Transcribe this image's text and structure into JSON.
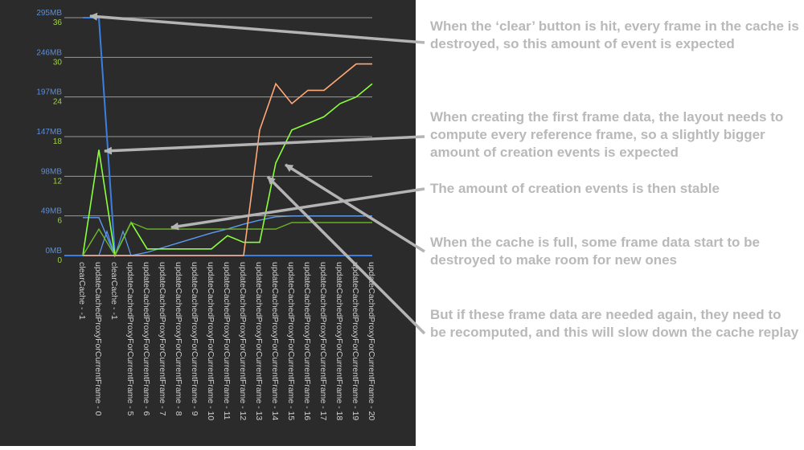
{
  "chart_data": {
    "type": "line",
    "categories": [
      "clearCache - -1",
      "updateCachedProxyForCurrentFrame - 0",
      "clearCache - -1",
      "updateCachedProxyForCurrentFrame - 5",
      "updateCachedProxyForCurrentFrame - 6",
      "updateCachedProxyForCurrentFrame - 7",
      "updateCachedProxyForCurrentFrame - 8",
      "updateCachedProxyForCurrentFrame - 9",
      "updateCachedProxyForCurrentFrame - 10",
      "updateCachedProxyForCurrentFrame - 11",
      "updateCachedProxyForCurrentFrame - 12",
      "updateCachedProxyForCurrentFrame - 13",
      "updateCachedProxyForCurrentFrame - 14",
      "updateCachedProxyForCurrentFrame - 15",
      "updateCachedProxyForCurrentFrame - 16",
      "updateCachedProxyForCurrentFrame - 17",
      "updateCachedProxyForCurrentFrame - 18",
      "updateCachedProxyForCurrentFrame - 19",
      "updateCachedProxyForCurrentFrame - 20"
    ],
    "y_memory_ticks": [
      "0MB",
      "49MB",
      "98MB",
      "147MB",
      "197MB",
      "246MB",
      "295MB"
    ],
    "y_events_ticks": [
      "0",
      "6",
      "12",
      "18",
      "24",
      "30",
      "36"
    ],
    "y_memory_range_mb": [
      0,
      295
    ],
    "y_events_range": [
      0,
      36
    ],
    "grid": true,
    "colors": {
      "memory": "#3d7fe0",
      "memory_light": "#5b9bf0",
      "events_bright": "#8aff3c",
      "events_dim": "#6cb82a",
      "destroyed": "#ffa878"
    },
    "series": [
      {
        "axis": "memory",
        "color": "#3d7fe0",
        "width": 2,
        "points": [
          [
            0,
            295
          ],
          [
            1,
            295
          ],
          [
            2,
            0
          ],
          [
            3,
            0
          ],
          [
            4,
            0
          ],
          [
            5,
            0
          ],
          [
            6,
            0
          ],
          [
            7,
            0
          ],
          [
            8,
            0
          ],
          [
            9,
            0
          ],
          [
            10,
            0
          ],
          [
            11,
            0
          ],
          [
            12,
            0
          ],
          [
            13,
            0
          ],
          [
            14,
            0
          ],
          [
            15,
            0
          ],
          [
            16,
            0
          ],
          [
            17,
            0
          ],
          [
            18,
            0
          ]
        ]
      },
      {
        "axis": "memory",
        "color": "#5b9bf0",
        "width": 1.4,
        "points": [
          [
            0,
            47
          ],
          [
            1,
            47
          ],
          [
            2,
            0
          ],
          [
            3,
            0
          ],
          [
            4,
            4
          ],
          [
            5,
            10
          ],
          [
            6,
            16
          ],
          [
            7,
            22
          ],
          [
            8,
            28
          ],
          [
            9,
            33
          ],
          [
            10,
            39
          ],
          [
            11,
            44
          ],
          [
            12,
            48
          ],
          [
            13,
            49
          ],
          [
            14,
            49
          ],
          [
            15,
            49
          ],
          [
            16,
            49
          ],
          [
            17,
            49
          ],
          [
            18,
            49
          ]
        ]
      },
      {
        "axis": "memory",
        "color": "#5b9bf0",
        "width": 1.2,
        "points": [
          [
            0,
            0
          ],
          [
            1,
            0
          ],
          [
            1.5,
            30
          ],
          [
            2,
            0
          ],
          [
            2.5,
            30
          ],
          [
            3,
            0
          ]
        ]
      },
      {
        "axis": "events",
        "color": "#8aff3c",
        "width": 1.6,
        "points": [
          [
            0,
            0
          ],
          [
            1,
            16
          ],
          [
            2,
            0
          ],
          [
            3,
            5
          ],
          [
            4,
            1
          ],
          [
            5,
            1
          ],
          [
            6,
            1
          ],
          [
            7,
            1
          ],
          [
            8,
            1
          ],
          [
            9,
            3
          ],
          [
            10,
            2
          ],
          [
            11,
            2
          ],
          [
            12,
            14
          ],
          [
            13,
            19
          ],
          [
            14,
            20
          ],
          [
            15,
            21
          ],
          [
            16,
            23
          ],
          [
            17,
            24
          ],
          [
            18,
            26
          ]
        ]
      },
      {
        "axis": "events",
        "color": "#6cb82a",
        "width": 1.4,
        "points": [
          [
            0,
            0
          ],
          [
            1,
            4
          ],
          [
            2,
            0
          ],
          [
            3,
            5
          ],
          [
            4,
            4
          ],
          [
            5,
            4
          ],
          [
            6,
            4
          ],
          [
            7,
            4
          ],
          [
            8,
            4
          ],
          [
            9,
            4
          ],
          [
            10,
            4
          ],
          [
            11,
            4
          ],
          [
            12,
            4
          ],
          [
            13,
            5
          ],
          [
            14,
            5
          ],
          [
            15,
            5
          ],
          [
            16,
            5
          ],
          [
            17,
            5
          ],
          [
            18,
            5
          ]
        ]
      },
      {
        "axis": "events",
        "color": "#ffa878",
        "width": 1.6,
        "points": [
          [
            0,
            0
          ],
          [
            1,
            0
          ],
          [
            2,
            0
          ],
          [
            3,
            0
          ],
          [
            4,
            0
          ],
          [
            5,
            0
          ],
          [
            6,
            0
          ],
          [
            7,
            0
          ],
          [
            8,
            0
          ],
          [
            9,
            0
          ],
          [
            10,
            0
          ],
          [
            11,
            19
          ],
          [
            12,
            26
          ],
          [
            13,
            23
          ],
          [
            14,
            25
          ],
          [
            15,
            25
          ],
          [
            16,
            27
          ],
          [
            17,
            29
          ],
          [
            18,
            29
          ]
        ]
      }
    ]
  },
  "annotations": [
    {
      "text": "When the ‘clear’ button is hit, every frame in the cache is destroyed, so this amount of event is expected",
      "top": 22,
      "arrow": [
        [
          528,
          53
        ],
        [
          112,
          20
        ]
      ]
    },
    {
      "text": "When creating the first frame data, the layout needs to compute every reference frame, so a slightly bigger amount of creation events is expected",
      "top": 135,
      "arrow": [
        [
          528,
          170
        ],
        [
          130,
          188
        ]
      ]
    },
    {
      "text": "The amount of creation events is then stable",
      "top": 224,
      "arrow": [
        [
          528,
          235
        ],
        [
          213,
          283
        ]
      ]
    },
    {
      "text": "When the cache is full, some frame data start to be destroyed to make room for new ones",
      "top": 291,
      "arrow": [
        [
          528,
          313
        ],
        [
          355,
          205
        ]
      ]
    },
    {
      "text": "But if these frame data are needed again, they need to be recomputed, and this will slow down the cache replay",
      "top": 381,
      "arrow": [
        [
          528,
          415
        ],
        [
          333,
          220
        ]
      ]
    }
  ]
}
